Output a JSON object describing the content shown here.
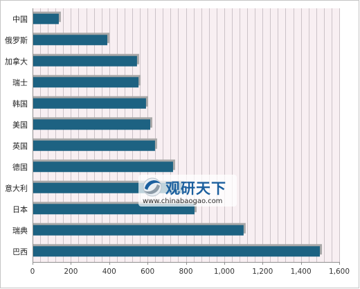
{
  "chart_data": {
    "type": "bar",
    "orientation": "horizontal",
    "categories": [
      "中国",
      "俄罗斯",
      "加拿大",
      "瑞士",
      "韩国",
      "美国",
      "英国",
      "德国",
      "意大利",
      "日本",
      "瑞典",
      "巴西"
    ],
    "values": [
      137,
      390,
      545,
      553,
      592,
      614,
      639,
      733,
      780,
      845,
      1101,
      1499
    ],
    "xlim": [
      0,
      1600
    ],
    "x_ticks": [
      0,
      200,
      400,
      600,
      800,
      1000,
      1200,
      1400,
      1600
    ],
    "x_tick_labels": [
      "0",
      "200",
      "400",
      "600",
      "800",
      "1,000",
      "1,200",
      "1,400",
      "1,600"
    ],
    "grid": true,
    "legend": "none",
    "bar_color": "#1d6282",
    "shadow_color": "#a8a8a8"
  },
  "watermark": {
    "brand": "观研天下",
    "url": "www.chinabaogao.com",
    "logo_icon": "swirl-logo-icon",
    "brand_color": "#1b5f9e"
  }
}
